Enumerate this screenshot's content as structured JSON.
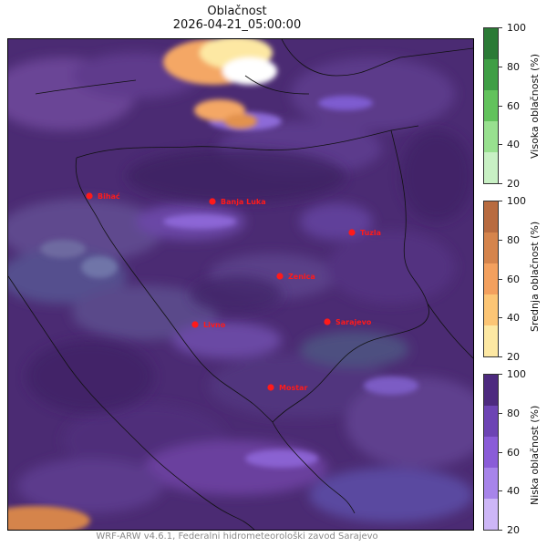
{
  "header": {
    "title": "Oblačnost",
    "datetime": "2026-04-21_05:00:00"
  },
  "map": {
    "cities": [
      {
        "name": "Bihać"
      },
      {
        "name": "Banja Luka"
      },
      {
        "name": "Tuzla"
      },
      {
        "name": "Zenica"
      },
      {
        "name": "Livno"
      },
      {
        "name": "Sarajevo"
      },
      {
        "name": "Mostar"
      }
    ],
    "marker_color": "#ff1a1a"
  },
  "colorbars": [
    {
      "label": "Visoka oblačnost (%)",
      "ticks": [
        "100",
        "80",
        "60",
        "40",
        "20"
      ],
      "colors": [
        "#c8f0c4",
        "#98e08f",
        "#62c25c",
        "#3f9e45",
        "#2b7a36"
      ]
    },
    {
      "label": "Srednja oblačnost (%)",
      "ticks": [
        "100",
        "80",
        "60",
        "40",
        "20"
      ],
      "colors": [
        "#fde8a3",
        "#fcc575",
        "#f3a05e",
        "#d5844c",
        "#b86b40"
      ]
    },
    {
      "label": "Niska oblačnost (%)",
      "ticks": [
        "100",
        "80",
        "60",
        "40",
        "20"
      ],
      "colors": [
        "#cdb6f7",
        "#a784ea",
        "#8a5cd8",
        "#6d44b4",
        "#4d2a7f"
      ]
    }
  ],
  "footer": {
    "text": "WRF-ARW v4.6.1, Federalni hidrometeorološki zavod Sarajevo"
  }
}
